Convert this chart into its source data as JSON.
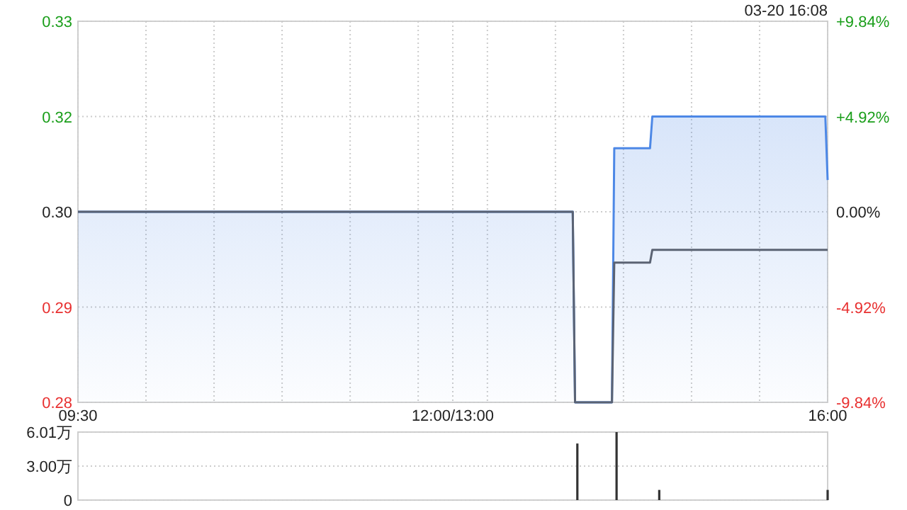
{
  "chart_data": [
    {
      "type": "area",
      "annotations": [
        "03-20 16:08"
      ],
      "grid": true,
      "series": [
        {
          "type": "area",
          "color": "#4d88e6",
          "x": [
            9.5,
            13.79,
            13.81,
            14.13,
            14.15,
            14.46,
            14.48,
            15.98,
            16
          ],
          "values": [
            0.305,
            0.305,
            0.275,
            0.275,
            0.315,
            0.315,
            0.32,
            0.32,
            0.31
          ]
        },
        {
          "type": "line",
          "color": "#5b6373",
          "x": [
            9.5,
            13.79,
            13.81,
            14.13,
            14.15,
            14.46,
            14.48,
            16
          ],
          "values": [
            0.305,
            0.305,
            0.275,
            0.275,
            0.297,
            0.297,
            0.299,
            0.299
          ]
        }
      ],
      "xlim": [
        9.5,
        16
      ],
      "xticks": [
        {
          "value": 9.5,
          "label": "09:30"
        },
        {
          "value": 10.09,
          "label": null
        },
        {
          "value": 10.68,
          "label": null
        },
        {
          "value": 11.27,
          "label": null
        },
        {
          "value": 11.86,
          "label": null
        },
        {
          "value": 12.45,
          "label": null
        },
        {
          "value": 12.75,
          "label": "12:00/13:00"
        },
        {
          "value": 13.05,
          "label": null
        },
        {
          "value": 13.64,
          "label": null
        },
        {
          "value": 14.23,
          "label": null
        },
        {
          "value": 14.82,
          "label": null
        },
        {
          "value": 15.41,
          "label": null
        },
        {
          "value": 16,
          "label": "16:00"
        }
      ],
      "ylim": [
        0.275,
        0.335
      ],
      "yticks": [
        {
          "value": 0.275,
          "label": "0.28"
        },
        0.29,
        {
          "value": 0.305,
          "label": "0.30"
        },
        0.32,
        {
          "value": 0.335,
          "label": "0.33"
        }
      ],
      "y2lim": [
        -9.84,
        9.84
      ],
      "y2ticks": [
        {
          "value": -9.84,
          "label": "-9.84%"
        },
        {
          "value": -4.92,
          "label": "-4.92%"
        },
        {
          "value": 0,
          "label": "0.00%"
        },
        {
          "value": 4.92,
          "label": "+4.92%"
        },
        {
          "value": 9.84,
          "label": "+9.84%"
        }
      ]
    },
    {
      "type": "bar",
      "x": [
        13.83,
        14.17,
        14.54,
        16
      ],
      "values": [
        5.0,
        6.01,
        0.9,
        0.9
      ],
      "color": "#333333",
      "xlim": [
        9.5,
        16
      ],
      "ylim": [
        0,
        6.01
      ],
      "yticks": [
        0,
        {
          "value": 3,
          "label": "3.00万"
        },
        {
          "value": 6.01,
          "label": "6.01万"
        }
      ],
      "grid": "y",
      "tick_labels": "y"
    }
  ]
}
